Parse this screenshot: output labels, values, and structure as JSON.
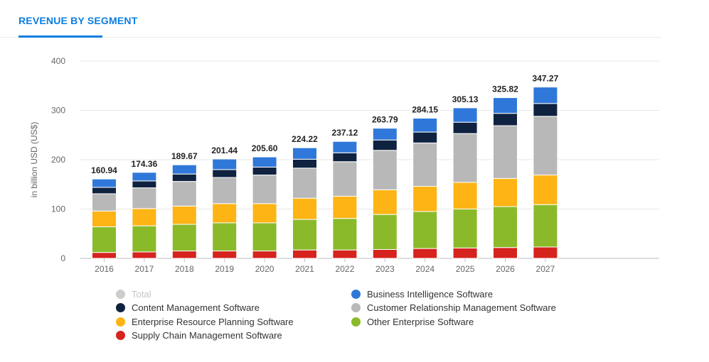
{
  "header": {
    "tab_label": "REVENUE BY SEGMENT"
  },
  "chart_data": {
    "type": "bar",
    "stacked": true,
    "title": "REVENUE BY SEGMENT",
    "xlabel": "",
    "ylabel": "in billion USD (US$)",
    "ylim": [
      0,
      400
    ],
    "yticks": [
      0,
      100,
      200,
      300,
      400
    ],
    "grid": true,
    "legend_position": "bottom",
    "categories": [
      "2016",
      "2017",
      "2018",
      "2019",
      "2020",
      "2021",
      "2022",
      "2023",
      "2024",
      "2025",
      "2026",
      "2027"
    ],
    "totals": [
      160.94,
      174.36,
      189.67,
      201.44,
      205.6,
      224.22,
      237.12,
      263.79,
      284.15,
      305.13,
      325.82,
      347.27
    ],
    "total_labels": [
      "160.94",
      "174.36",
      "189.67",
      "201.44",
      "205.60",
      "224.22",
      "237.12",
      "263.79",
      "284.15",
      "305.13",
      "325.82",
      "347.27"
    ],
    "series": [
      {
        "name": "Supply Chain Management Software",
        "color": "#d6231e",
        "values": [
          12,
          13,
          15,
          15,
          15,
          17,
          17,
          18,
          20,
          21,
          22,
          23
        ]
      },
      {
        "name": "Other Enterprise Software",
        "color": "#8aba2a",
        "values": [
          52,
          53,
          54,
          57,
          57,
          62,
          64,
          71,
          75,
          79,
          83,
          86
        ]
      },
      {
        "name": "Enterprise Resource Planning Software",
        "color": "#fdb414",
        "values": [
          32,
          35,
          37,
          39,
          39,
          43,
          45,
          50,
          51,
          54,
          57,
          60
        ]
      },
      {
        "name": "Customer Relationship Management Software",
        "color": "#b8b8b8",
        "values": [
          35,
          42,
          50,
          53,
          58,
          61,
          70,
          80,
          88,
          99,
          107,
          119
        ]
      },
      {
        "name": "Content Management Software",
        "color": "#0f2240",
        "values": [
          13,
          14,
          15,
          16,
          16,
          18,
          18,
          21,
          22,
          23,
          25,
          26
        ]
      },
      {
        "name": "Business Intelligence Software",
        "color": "#2f78d9",
        "values": [
          16.94,
          17.36,
          18.67,
          21.44,
          20.6,
          23.22,
          23.12,
          23.79,
          28.15,
          29.13,
          31.82,
          33.27
        ]
      }
    ],
    "legend": {
      "left_column": [
        {
          "name": "Total",
          "color": "#cccccc",
          "muted": true
        },
        {
          "name": "Content Management Software",
          "color": "#0f2240"
        },
        {
          "name": "Enterprise Resource Planning Software",
          "color": "#fdb414"
        },
        {
          "name": "Supply Chain Management Software",
          "color": "#d6231e"
        }
      ],
      "right_column": [
        {
          "name": "Business Intelligence Software",
          "color": "#2f78d9"
        },
        {
          "name": "Customer Relationship Management Software",
          "color": "#b8b8b8"
        },
        {
          "name": "Other Enterprise Software",
          "color": "#8aba2a"
        }
      ]
    }
  }
}
